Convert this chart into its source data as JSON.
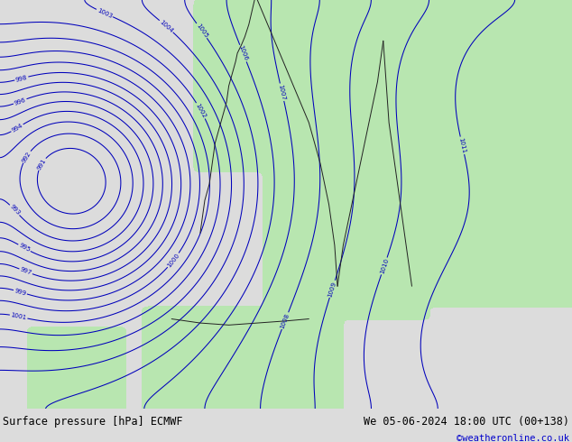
{
  "title_left": "Surface pressure [hPa] ECMWF",
  "title_right": "We 05-06-2024 18:00 UTC (00+138)",
  "copyright": "©weatheronline.co.uk",
  "background_color": "#dcdcdc",
  "land_color": "#b8e6b0",
  "sea_color": "#dcdcdc",
  "contour_color": "#0000bb",
  "border_color": "#222222",
  "bottom_bar_color": "#c8c8c8",
  "figsize": [
    6.34,
    4.9
  ],
  "dpi": 100
}
